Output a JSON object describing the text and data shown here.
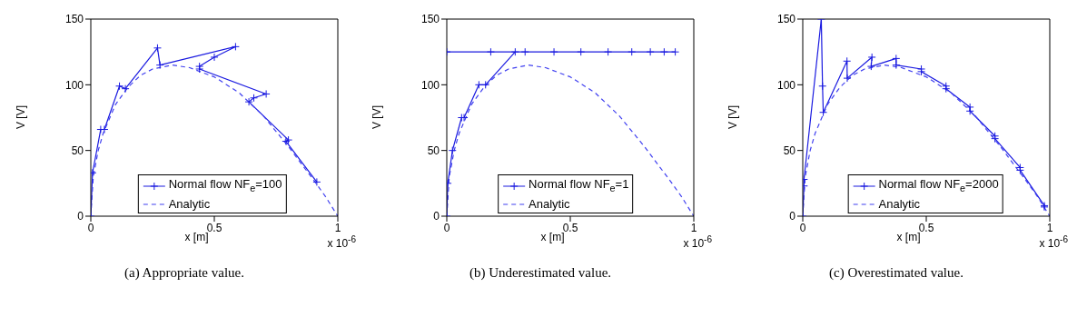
{
  "chart_data": [
    {
      "type": "line",
      "xlabel": "x [m]",
      "ylabel": "V [V]",
      "xlim": [
        0,
        1
      ],
      "xticks": [
        0,
        0.5,
        1
      ],
      "ylim": [
        0,
        150
      ],
      "yticks": [
        0,
        50,
        100,
        150
      ],
      "legend": "bottom",
      "annotations": [
        "x 10$^{-6}$",
        "(a) Appropriate value."
      ],
      "series": [
        {
          "name": "Normal flow NF$_{e}$=100",
          "color": "#1a1ae0",
          "marker": "cross",
          "line_style": "solid",
          "x": [
            0,
            0.007,
            0.04,
            0.055,
            0.116,
            0.14,
            0.27,
            0.28,
            0.586,
            0.5,
            0.44,
            0.44,
            0.71,
            0.66,
            0.64,
            0.8,
            0.79,
            0.915
          ],
          "values": [
            0,
            33,
            66,
            66,
            99,
            97,
            128,
            115,
            129,
            121,
            114,
            112,
            93,
            90,
            87,
            58,
            57,
            26
          ]
        },
        {
          "name": "Analytic",
          "color": "#4040f0",
          "marker": "none",
          "line_style": "dashed",
          "x": [
            0,
            0.01,
            0.03,
            0.05,
            0.1,
            0.15,
            0.2,
            0.25,
            0.33,
            0.4,
            0.5,
            0.6,
            0.7,
            0.8,
            0.9,
            0.95,
            1
          ],
          "values": [
            0,
            30,
            50,
            63,
            85,
            98,
            107,
            112,
            115,
            113,
            106,
            94,
            76,
            53,
            28,
            15,
            0
          ]
        }
      ]
    },
    {
      "type": "line",
      "xlabel": "x [m]",
      "ylabel": "V [V]",
      "xlim": [
        0,
        1
      ],
      "xticks": [
        0,
        0.5,
        1
      ],
      "ylim": [
        0,
        150
      ],
      "yticks": [
        0,
        50,
        100,
        150
      ],
      "legend": "bottom",
      "annotations": [
        "x 10$^{-6}$",
        "(b) Underestimated value."
      ],
      "series": [
        {
          "name": "Normal flow NF$_{e}$=1",
          "color": "#1a1ae0",
          "marker": "cross",
          "line_style": "solid",
          "x": [
            0,
            0.004,
            0.023,
            0.06,
            0.07,
            0.13,
            0.157,
            0.277,
            0,
            0.178,
            0.317,
            0.434,
            0.543,
            0.653,
            0.749,
            0.824,
            0.88,
            0.925
          ],
          "values": [
            0,
            25,
            50,
            75,
            75,
            100,
            100,
            125,
            125,
            125,
            125,
            125,
            125,
            125,
            125,
            125,
            125,
            125
          ]
        },
        {
          "name": "Analytic",
          "color": "#4040f0",
          "marker": "none",
          "line_style": "dashed",
          "x": [
            0,
            0.01,
            0.03,
            0.05,
            0.1,
            0.15,
            0.2,
            0.25,
            0.33,
            0.4,
            0.5,
            0.6,
            0.7,
            0.8,
            0.9,
            0.95,
            1
          ],
          "values": [
            0,
            30,
            50,
            63,
            85,
            98,
            107,
            112,
            115,
            113,
            106,
            94,
            76,
            53,
            28,
            15,
            0
          ]
        }
      ]
    },
    {
      "type": "line",
      "xlabel": "x [m]",
      "ylabel": "V [V]",
      "xlim": [
        0,
        1
      ],
      "xticks": [
        0,
        0.5,
        1
      ],
      "ylim": [
        0,
        150
      ],
      "yticks": [
        0,
        50,
        100,
        150
      ],
      "legend": "bottom",
      "annotations": [
        "x 10$^{-6}$",
        "(c) Overestimated value."
      ],
      "series": [
        {
          "name": "Normal flow NF$_{e}$=2000",
          "color": "#1a1ae0",
          "marker": "cross",
          "line_style": "solid",
          "x": [
            0,
            0.005,
            0.005,
            0.075,
            0.08,
            0.083,
            0.179,
            0.18,
            0.28,
            0.277,
            0.378,
            0.378,
            0.48,
            0.48,
            0.58,
            0.58,
            0.677,
            0.677,
            0.778,
            0.778,
            0.88,
            0.88,
            0.978,
            0.978
          ],
          "values": [
            0,
            23,
            28,
            150,
            99,
            79,
            118,
            105,
            121,
            114,
            120,
            115,
            112,
            110,
            99,
            97,
            83,
            80,
            61,
            59,
            37,
            35,
            8,
            7
          ]
        },
        {
          "name": "Analytic",
          "color": "#4040f0",
          "marker": "none",
          "line_style": "dashed",
          "x": [
            0,
            0.01,
            0.03,
            0.05,
            0.1,
            0.15,
            0.2,
            0.25,
            0.33,
            0.4,
            0.5,
            0.6,
            0.7,
            0.8,
            0.9,
            0.95,
            1
          ],
          "values": [
            0,
            30,
            50,
            63,
            85,
            98,
            107,
            112,
            115,
            113,
            106,
            94,
            76,
            53,
            28,
            15,
            0
          ]
        }
      ]
    }
  ]
}
